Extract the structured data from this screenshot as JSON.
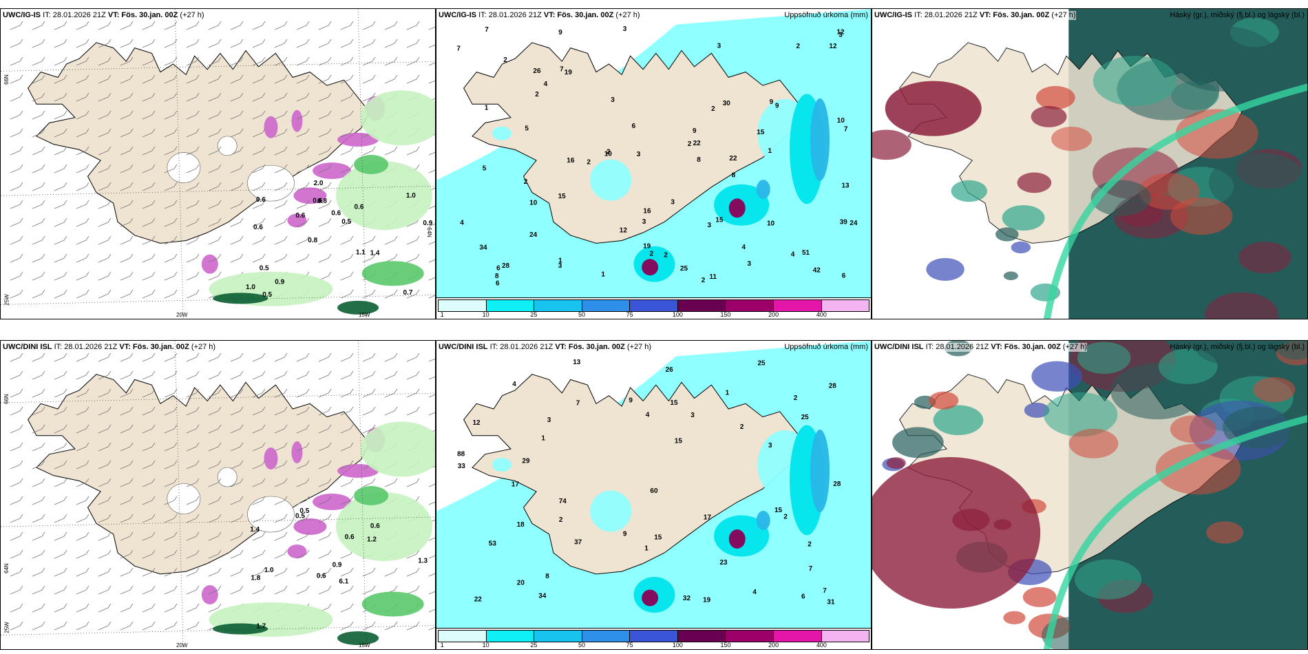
{
  "panels": [
    {
      "id": "tl",
      "model": "UWC/IG-IS",
      "it": "IT: 28.01.2026 21Z",
      "vt_label": "VT:",
      "vt_value": "Fös. 30.jan. 00Z",
      "lead": "(+27 h)",
      "right_title": "",
      "axis": {
        "lat1": "66N",
        "lat2": "64N",
        "lat3": "25W",
        "lon1": "20W",
        "lon2": "15W"
      },
      "values": [
        "0.7",
        "0.6",
        "1.0",
        "0.8",
        "0.6",
        "0.5",
        "0.6",
        "0.6",
        "0.5",
        "0.6",
        "1.0",
        "0.9",
        "0.8",
        "0.5",
        "1.4",
        "0.6",
        "2.0",
        "0.9",
        "1.1"
      ]
    },
    {
      "id": "tm",
      "model": "UWC/IG-IS",
      "it": "IT: 28.01.2026 21Z",
      "vt_label": "VT:",
      "vt_value": "Fös. 30.jan. 00Z",
      "lead": "(+27 h)",
      "right_title": "Uppsöfnuð úrkoma (mm)",
      "values": [
        "1",
        "2",
        "1",
        "4",
        "9",
        "2",
        "16",
        "42",
        "3",
        "3",
        "2",
        "2",
        "2",
        "3",
        "3",
        "2",
        "1",
        "3",
        "2",
        "7",
        "3",
        "3",
        "9",
        "6",
        "9",
        "2",
        "4",
        "10",
        "7",
        "8",
        "3",
        "11",
        "16",
        "12",
        "24",
        "22",
        "39",
        "34",
        "30",
        "51",
        "22",
        "15",
        "24",
        "28",
        "19",
        "15",
        "13",
        "25",
        "26",
        "19",
        "12",
        "10",
        "6",
        "10",
        "15",
        "9",
        "10",
        "6",
        "7",
        "5",
        "4",
        "3",
        "2",
        "1",
        "2",
        "8",
        "8",
        "7",
        "6",
        "2",
        "12",
        "3",
        "4",
        "5"
      ],
      "cbar_ticks": [
        "1",
        "10",
        "25",
        "50",
        "75",
        "100",
        "150",
        "200",
        "400"
      ]
    },
    {
      "id": "tr",
      "model": "UWC/IG-IS",
      "it": "IT: 28.01.2026 21Z",
      "vt_label": "VT:",
      "vt_value": "Fös. 30.jan. 00Z",
      "lead": "(+27 h)",
      "right_title": "Háský (gr.), miðský (fj.bl.) og lágský (bl.)"
    },
    {
      "id": "bl",
      "model": "UWC/DINI ISL",
      "it": "IT: 28.01.2026 21Z",
      "vt_label": "VT:",
      "vt_value": "Fös. 30.jan. 00Z",
      "lead": "(+27 h)",
      "right_title": "",
      "axis": {
        "lat1": "66N",
        "lat2": "64N",
        "lat3": "25W",
        "lon1": "20W",
        "lon2": "15W"
      },
      "values": [
        "0.5",
        "0.6",
        "1.3",
        "0.6",
        "6.1",
        "1.0",
        "1.4",
        "1.2",
        "1.8",
        "0.6",
        "0.9",
        "1.7",
        "0.5"
      ]
    },
    {
      "id": "bm",
      "model": "UWC/DINI ISL",
      "it": "IT: 28.01.2026 21Z",
      "vt_label": "VT:",
      "vt_value": "Fös. 30.jan. 00Z",
      "lead": "(+27 h)",
      "right_title": "Uppsöfnuð úrkoma (mm)",
      "values": [
        "2",
        "2",
        "1",
        "2",
        "3",
        "37",
        "53",
        "60",
        "74",
        "88",
        "13",
        "9",
        "7",
        "15",
        "20",
        "18",
        "15",
        "25",
        "22",
        "23",
        "32",
        "28",
        "34",
        "31",
        "17",
        "26",
        "29",
        "33",
        "28",
        "17",
        "25",
        "15",
        "19",
        "12",
        "9",
        "15",
        "7",
        "4",
        "3",
        "2",
        "7",
        "8",
        "6",
        "3",
        "4",
        "1",
        "2",
        "1",
        "4"
      ],
      "cbar_ticks": [
        "1",
        "10",
        "25",
        "50",
        "75",
        "100",
        "150",
        "200",
        "400"
      ]
    },
    {
      "id": "br",
      "model": "UWC/DINI ISL",
      "it": "IT: 28.01.2026 21Z",
      "vt_label": "VT:",
      "vt_value": "Fös. 30.jan. 00Z",
      "lead": "(+27 h)",
      "right_title": "Háský (gr.), miðský (fj.bl.) og lágský (bl.)"
    }
  ],
  "colors": {
    "land": "#efe3d1",
    "precip_light": "#8fffff",
    "precip_cyan": "#00e4ec",
    "precip_blue": "#29b6e8",
    "precip_magenta": "#8b0057",
    "green_light": "#c6f2c0",
    "green_mid": "#59c86b",
    "green_dark": "#0b5e33",
    "purple_snow": "#cc66cc",
    "cloud_high": "#8c1f3c",
    "cloud_mid": "#3f4fb8",
    "cloud_low": "#2fa78c",
    "cloud_dark": "#245c5a",
    "cbar": [
      "#ddfcfc",
      "#0ff0f4",
      "#18c3ef",
      "#2e8fe8",
      "#3a55d8",
      "#6a0052",
      "#9e006a",
      "#e316a9",
      "#f4b4f2"
    ]
  }
}
